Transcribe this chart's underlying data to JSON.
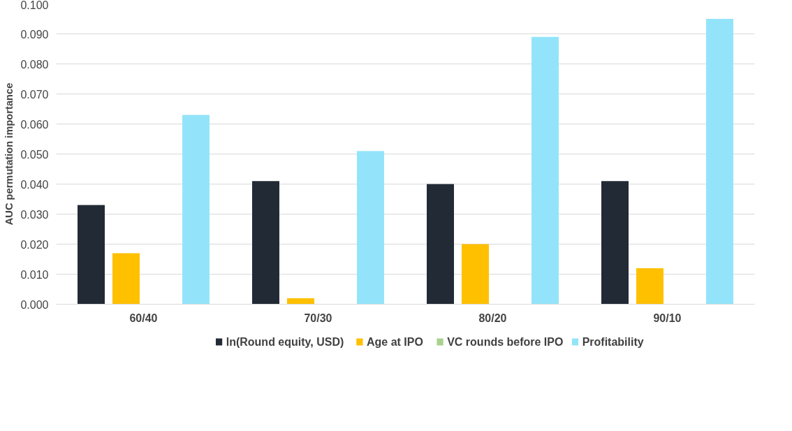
{
  "chart_data": {
    "type": "bar",
    "ylabel": "AUC permutation importance",
    "categories": [
      "60/40",
      "70/30",
      "80/20",
      "90/10"
    ],
    "series": [
      {
        "name": "ln(Round equity, USD)",
        "color": "#222a35",
        "values": [
          0.033,
          0.041,
          0.04,
          0.041
        ]
      },
      {
        "name": "Age at IPO",
        "color": "#ffc000",
        "values": [
          0.017,
          0.002,
          0.02,
          0.012
        ]
      },
      {
        "name": "VC rounds before IPO",
        "color": "#a9d18e",
        "values": [
          0,
          0,
          0,
          0
        ]
      },
      {
        "name": "Profitability",
        "color": "#93e4fa",
        "values": [
          0.063,
          0.051,
          0.089,
          0.095
        ]
      }
    ],
    "ylim": [
      0,
      0.1
    ],
    "yticks": [
      {
        "value": 0,
        "label": "0.000"
      },
      {
        "value": 0.01,
        "label": "0.010"
      },
      {
        "value": 0.02,
        "label": "0.020"
      },
      {
        "value": 0.03,
        "label": "0.030"
      },
      {
        "value": 0.04,
        "label": "0.040"
      },
      {
        "value": 0.05,
        "label": "0.050"
      },
      {
        "value": 0.06,
        "label": "0.060"
      },
      {
        "value": 0.07,
        "label": "0.070"
      },
      {
        "value": 0.08,
        "label": "0.080"
      },
      {
        "value": 0.09,
        "label": "0.090"
      },
      {
        "value": 0.1,
        "label": "0.100"
      }
    ],
    "grid": "y",
    "legend": "bottom"
  }
}
